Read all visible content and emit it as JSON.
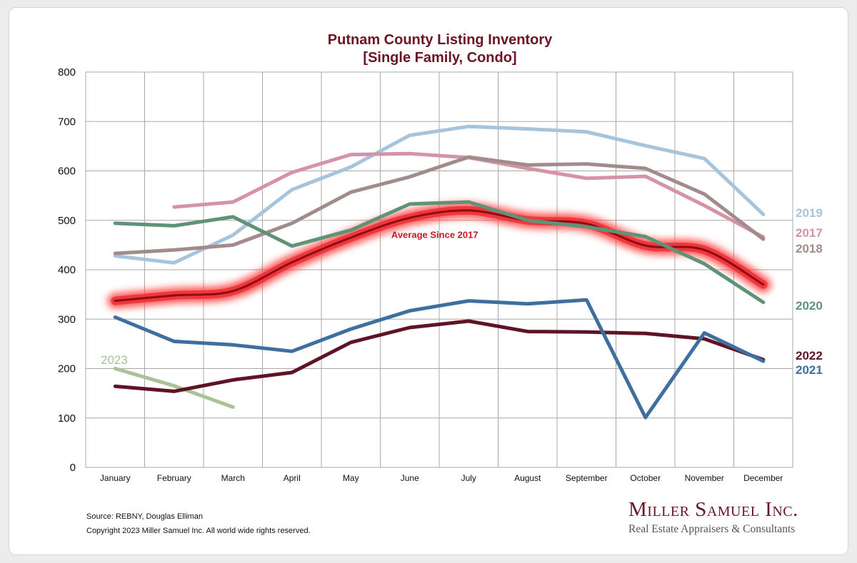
{
  "chart_data": {
    "type": "line",
    "title_line1": "Putnam County Listing Inventory",
    "title_line2": "[Single Family, Condo]",
    "categories": [
      "January",
      "February",
      "March",
      "April",
      "May",
      "June",
      "July",
      "August",
      "September",
      "October",
      "November",
      "December"
    ],
    "ylim": [
      0,
      800
    ],
    "yticks": [
      0,
      100,
      200,
      300,
      400,
      500,
      600,
      700,
      800
    ],
    "grid": true,
    "series": [
      {
        "name": "2019",
        "color": "#a6c4dc",
        "values": [
          428,
          414,
          470,
          562,
          608,
          672,
          690,
          685,
          679,
          651,
          625,
          512
        ]
      },
      {
        "name": "2017",
        "color": "#d493a8",
        "values": [
          null,
          527,
          537,
          597,
          633,
          635,
          627,
          605,
          585,
          589,
          530,
          466
        ]
      },
      {
        "name": "2018",
        "color": "#a28b8b",
        "values": [
          433,
          440,
          450,
          494,
          557,
          588,
          628,
          612,
          614,
          605,
          553,
          462
        ]
      },
      {
        "name": "2020",
        "color": "#5e9378",
        "values": [
          494,
          489,
          507,
          448,
          480,
          533,
          537,
          500,
          487,
          467,
          412,
          334
        ]
      },
      {
        "name": "2022",
        "color": "#5f1425",
        "values": [
          164,
          154,
          177,
          192,
          253,
          283,
          296,
          275,
          274,
          271,
          260,
          218
        ]
      },
      {
        "name": "2021",
        "color": "#3f6f9f",
        "values": [
          304,
          255,
          248,
          235,
          280,
          317,
          337,
          331,
          339,
          101,
          272,
          215
        ]
      },
      {
        "name": "2023",
        "color": "#a9c29a",
        "values": [
          200,
          165,
          122,
          null,
          null,
          null,
          null,
          null,
          null,
          null,
          null,
          null
        ]
      }
    ],
    "average": {
      "name": "Average  Since 2017",
      "color": "#c41a24",
      "values": [
        337,
        348,
        357,
        415,
        465,
        505,
        520,
        500,
        493,
        449,
        440,
        370
      ]
    }
  },
  "footer": {
    "source": "Source: REBNY, Douglas Elliman",
    "copyright": "Copyright 2023 Miller Samuel Inc.  All world wide rights reserved."
  },
  "brand": {
    "name": "Miller Samuel Inc.",
    "tagline": "Real Estate Appraisers & Consultants"
  }
}
